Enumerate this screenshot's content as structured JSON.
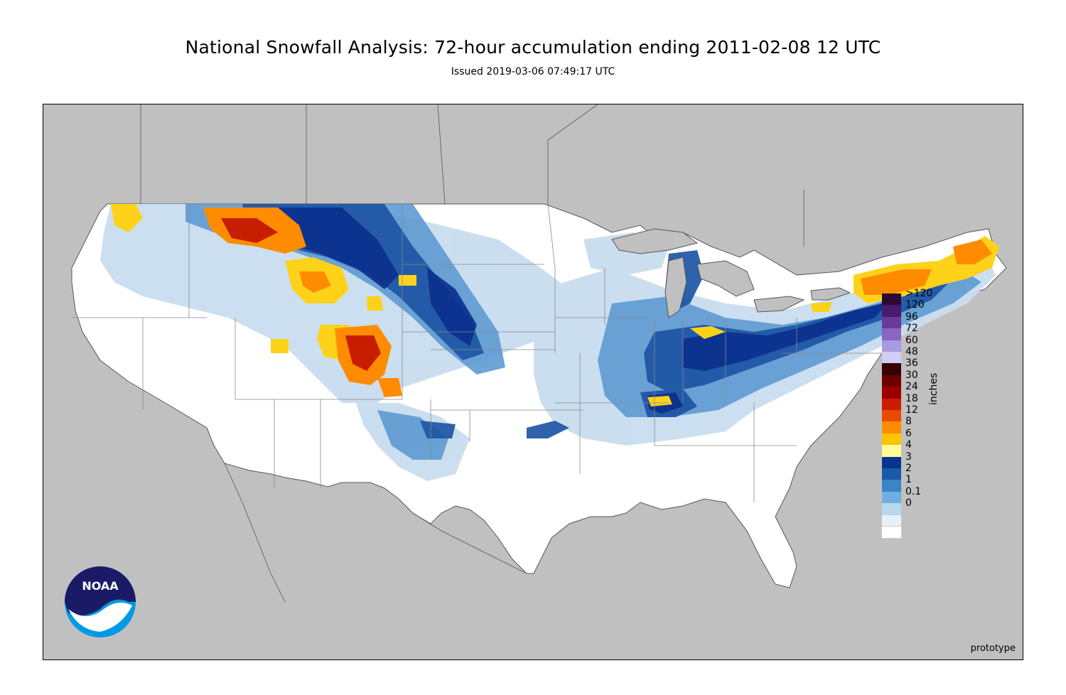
{
  "title": "National Snowfall Analysis: 72-hour accumulation ending 2011-02-08 12 UTC",
  "subtitle": "Issued 2019-03-06 07:49:17 UTC",
  "watermark": "prototype",
  "logo_text": "NOAA",
  "legend": {
    "units": "inches",
    "items": [
      {
        "label": ">120",
        "color": "#2a0a33"
      },
      {
        "label": "120",
        "color": "#4a1a6b"
      },
      {
        "label": "96",
        "color": "#6a3a9a"
      },
      {
        "label": "72",
        "color": "#8a66c2"
      },
      {
        "label": "60",
        "color": "#a89ae0"
      },
      {
        "label": "48",
        "color": "#d0ccf5"
      },
      {
        "label": "36",
        "color": "#3a0000"
      },
      {
        "label": "30",
        "color": "#6b0000"
      },
      {
        "label": "24",
        "color": "#9a0000"
      },
      {
        "label": "18",
        "color": "#cc1b00"
      },
      {
        "label": "12",
        "color": "#e84a00"
      },
      {
        "label": "8",
        "color": "#ff8c00"
      },
      {
        "label": "6",
        "color": "#ffc400"
      },
      {
        "label": "4",
        "color": "#ffff99"
      },
      {
        "label": "3",
        "color": "#0a3390"
      },
      {
        "label": "2",
        "color": "#1a5aa8"
      },
      {
        "label": "1",
        "color": "#3a84c8"
      },
      {
        "label": "0.1",
        "color": "#6eaee0"
      },
      {
        "label": "0",
        "color": "#b8d8ee"
      },
      {
        "label": "",
        "color": "#e6f0f8"
      },
      {
        "label": "",
        "color": "#ffffff"
      }
    ]
  },
  "colors": {
    "outside": "#c0c0c0",
    "land": "#ffffff",
    "border": "#666666",
    "light": "#c8ddef",
    "mid": "#5e9ad2",
    "dark": "#1d55a5",
    "deep": "#0a2f8c",
    "yellow": "#ffd21a",
    "orange": "#ff8c00",
    "red": "#c81e00"
  }
}
